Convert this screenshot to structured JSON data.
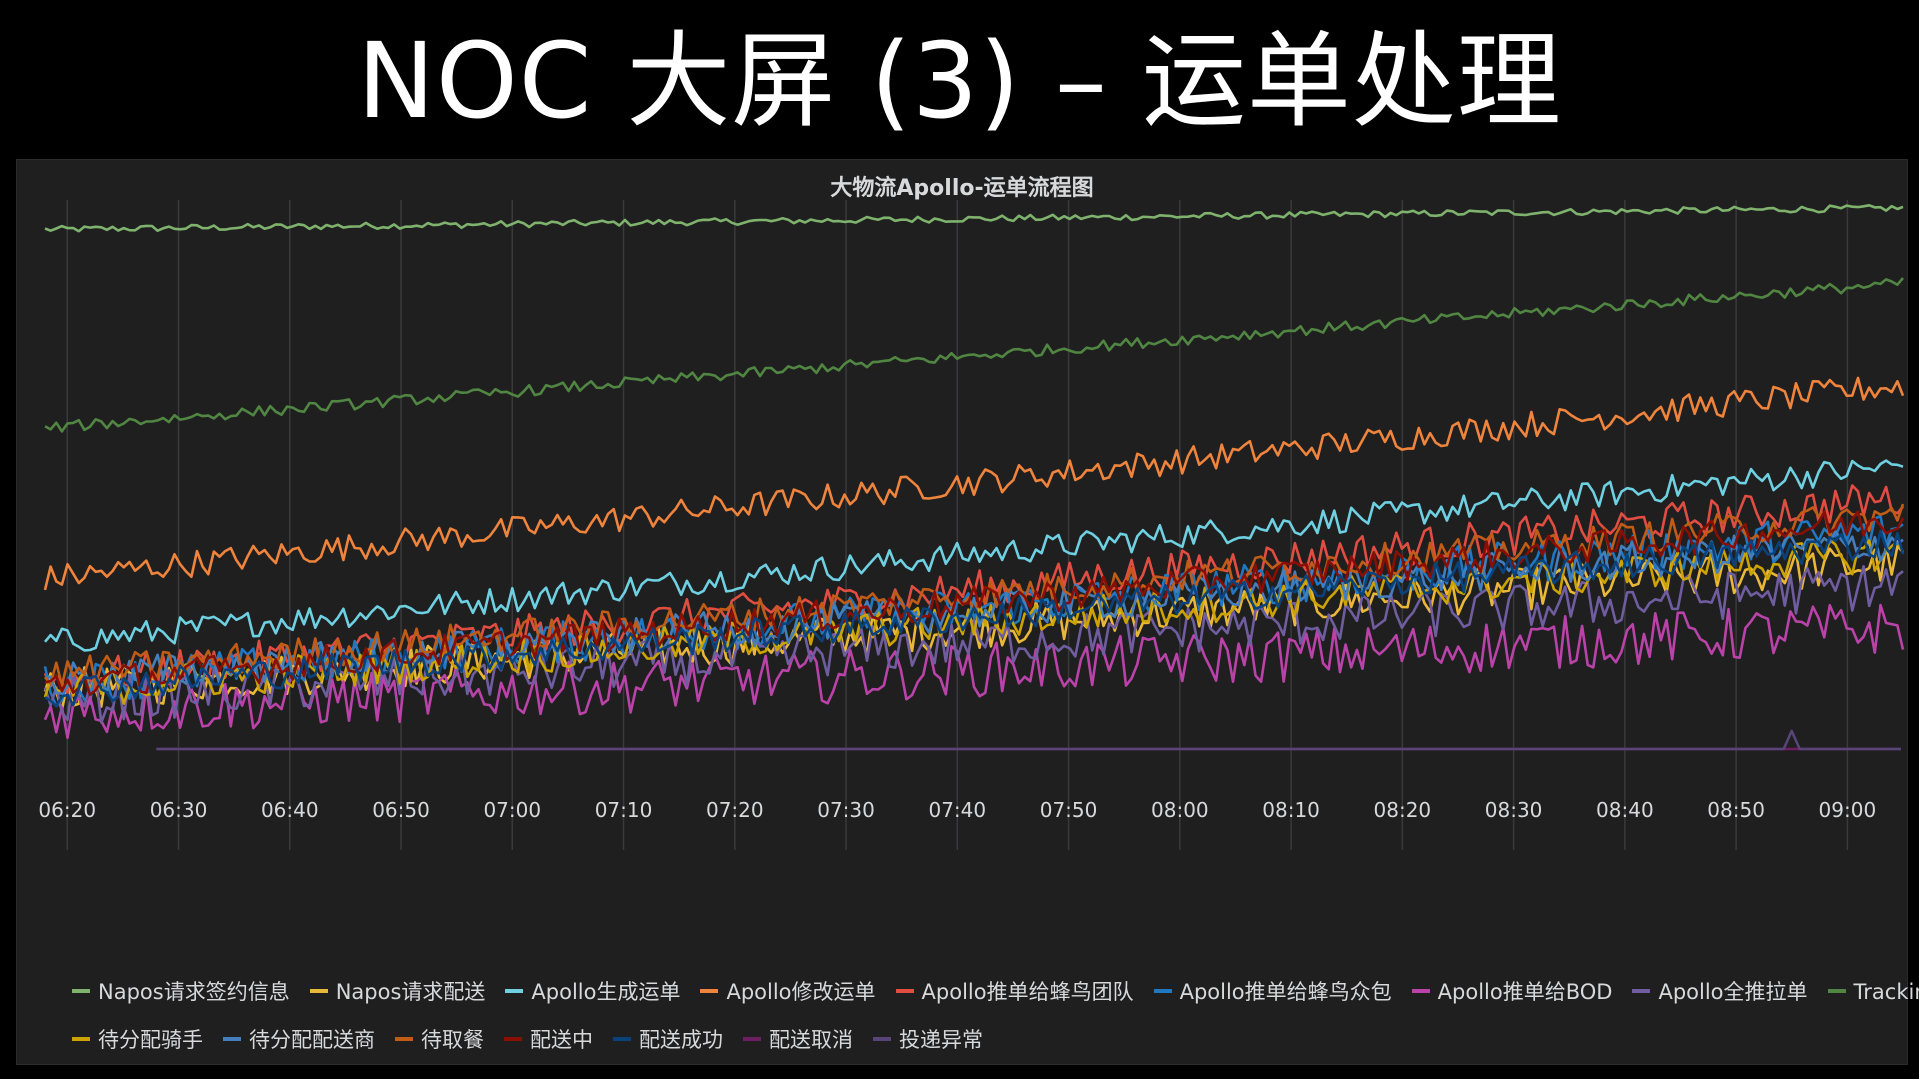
{
  "slide": {
    "title": "NOC 大屏 (3) – 运单处理"
  },
  "colors": {
    "background": "#000000",
    "panel_bg": "#1f1f20",
    "text": "#d8d9da",
    "grid": "#3a3a3c"
  },
  "chart_data": {
    "type": "line",
    "title": "大物流Apollo-运单流程图",
    "xlabel": "",
    "ylabel": "",
    "x_range": [
      "06:18",
      "09:05"
    ],
    "x_tick_labels": [
      "06:20",
      "06:30",
      "06:40",
      "06:50",
      "07:00",
      "07:10",
      "07:20",
      "07:30",
      "07:40",
      "07:50",
      "08:00",
      "08:10",
      "08:20",
      "08:30",
      "08:40",
      "08:50",
      "09:00"
    ],
    "ylim": [
      0,
      100
    ],
    "grid": "vertical",
    "legend_position": "bottom",
    "series": [
      {
        "name": "Napos请求签约信息",
        "color": "#7eb26d",
        "start": 96,
        "end": 100,
        "noise": 0.6
      },
      {
        "name": "Napos请求配送",
        "color": "#eab839",
        "start": 10,
        "end": 34,
        "noise": 4
      },
      {
        "name": "Apollo生成运单",
        "color": "#6ed0e0",
        "start": 19,
        "end": 52,
        "noise": 2.5
      },
      {
        "name": "Apollo修改运单",
        "color": "#ef843c",
        "start": 31,
        "end": 67,
        "noise": 2.5
      },
      {
        "name": "Apollo推单给蜂鸟团队",
        "color": "#e24d42",
        "start": 12,
        "end": 46,
        "noise": 3.5
      },
      {
        "name": "Apollo推单给蜂鸟众包",
        "color": "#1f78c1",
        "start": 11,
        "end": 40,
        "noise": 4
      },
      {
        "name": "Apollo推单给BOD",
        "color": "#ba43a9",
        "start": 6,
        "end": 22,
        "noise": 5
      },
      {
        "name": "Apollo全推拉单",
        "color": "#705da0",
        "start": 8,
        "end": 30,
        "noise": 4.5
      },
      {
        "name": "Tracking服务",
        "color": "#508642",
        "start": 59,
        "end": 86,
        "noise": 1
      },
      {
        "name": "待分配骑手",
        "color": "#cca300",
        "start": 10,
        "end": 36,
        "noise": 3.5
      },
      {
        "name": "待分配配送商",
        "color": "#447ebc",
        "start": 12,
        "end": 38,
        "noise": 3.5
      },
      {
        "name": "待取餐",
        "color": "#c15c17",
        "start": 13,
        "end": 43,
        "noise": 3
      },
      {
        "name": "配送中",
        "color": "#890f02",
        "start": 11,
        "end": 42,
        "noise": 3
      },
      {
        "name": "配送成功",
        "color": "#0a437c",
        "start": 10,
        "end": 38,
        "noise": 3
      },
      {
        "name": "配送取消",
        "color": "#6d1f62",
        "start": 0,
        "end": 0,
        "noise": 0
      },
      {
        "name": "投递异常",
        "color": "#584477",
        "start": 0,
        "end": 0,
        "noise": 0
      }
    ]
  }
}
